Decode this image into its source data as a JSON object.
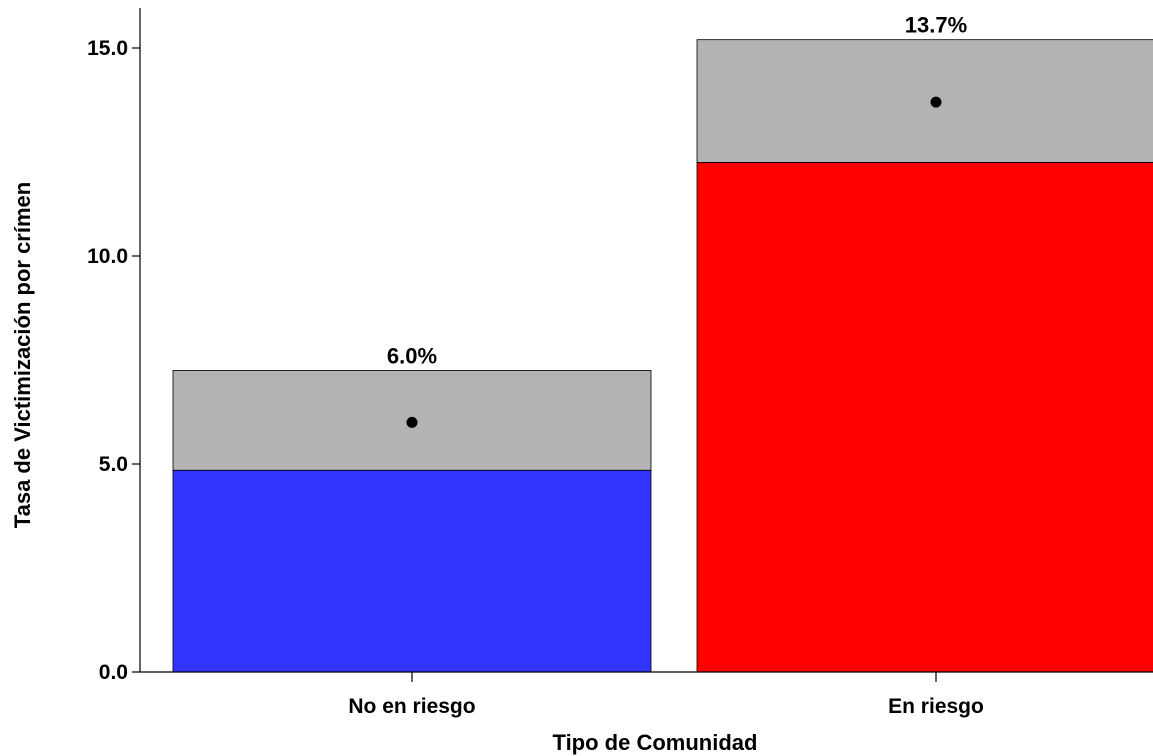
{
  "chart_data": {
    "type": "bar",
    "xlabel": "Tipo de Comunidad",
    "ylabel": "Tasa de Victimización por crímen",
    "categories": [
      "No en riesgo",
      "En riesgo"
    ],
    "values": [
      6.0,
      13.7
    ],
    "data_labels": [
      "6.0%",
      "13.7%"
    ],
    "ci_lower": [
      4.85,
      12.25
    ],
    "ci_upper": [
      7.25,
      15.2
    ],
    "colors": [
      "#3333ff",
      "#ff0000"
    ],
    "ci_color": "#b3b3b3",
    "ylim": [
      0,
      15.5
    ],
    "yticks": [
      0,
      5,
      10,
      15
    ],
    "ytick_labels": [
      "0.0",
      "5.0",
      "10.0",
      "15.0"
    ],
    "grid": false
  }
}
